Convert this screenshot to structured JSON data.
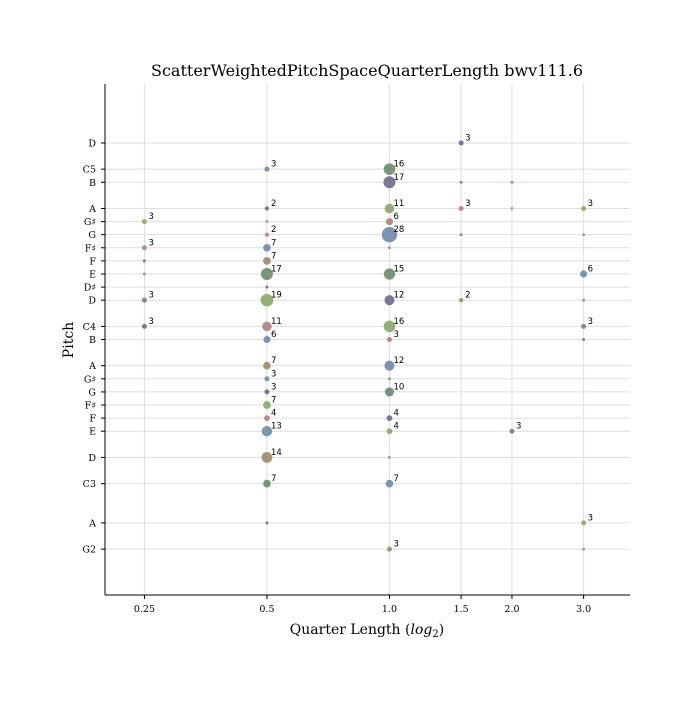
{
  "chart_data": {
    "type": "scatter",
    "title": "ScatterWeightedPitchSpaceQuarterLength bwv111.6",
    "xlabel": "Quarter Length (",
    "xlabel_math": "log",
    "xlabel_sub": "2",
    "xlabel_end": ")",
    "ylabel": "Pitch",
    "x_scale": "log2",
    "xlim": [
      0.2,
      3.9
    ],
    "ylim": [
      39.5,
      78.5
    ],
    "x_ticks": [
      {
        "value": 0.25,
        "label": "0.25"
      },
      {
        "value": 0.5,
        "label": "0.5"
      },
      {
        "value": 1.0,
        "label": "1.0"
      },
      {
        "value": 1.5,
        "label": "1.5"
      },
      {
        "value": 2.0,
        "label": "2.0"
      },
      {
        "value": 3.0,
        "label": "3.0"
      }
    ],
    "y_ticks": [
      {
        "value": 43,
        "label": "G2"
      },
      {
        "value": 45,
        "label": "A"
      },
      {
        "value": 48,
        "label": "C3"
      },
      {
        "value": 50,
        "label": "D"
      },
      {
        "value": 52,
        "label": "E"
      },
      {
        "value": 53,
        "label": "F"
      },
      {
        "value": 54,
        "label": "F♯"
      },
      {
        "value": 55,
        "label": "G"
      },
      {
        "value": 56,
        "label": "G♯"
      },
      {
        "value": 57,
        "label": "A"
      },
      {
        "value": 59,
        "label": "B"
      },
      {
        "value": 60,
        "label": "C4"
      },
      {
        "value": 62,
        "label": "D"
      },
      {
        "value": 63,
        "label": "D♯"
      },
      {
        "value": 64,
        "label": "E"
      },
      {
        "value": 65,
        "label": "F"
      },
      {
        "value": 66,
        "label": "F♯"
      },
      {
        "value": 67,
        "label": "G"
      },
      {
        "value": 68,
        "label": "G♯"
      },
      {
        "value": 69,
        "label": "A"
      },
      {
        "value": 71,
        "label": "B"
      },
      {
        "value": 72,
        "label": "C5"
      },
      {
        "value": 74,
        "label": "D"
      }
    ],
    "grid": true,
    "colors": [
      "#6c8a6e",
      "#6b6b8c",
      "#89a86c",
      "#9b8a6a",
      "#b3807c",
      "#6e8aa8"
    ],
    "points": [
      {
        "x": 1.5,
        "y": 74,
        "count": 3,
        "label": "3",
        "c": 1
      },
      {
        "x": 0.5,
        "y": 72,
        "count": 3,
        "label": "3",
        "c": 5
      },
      {
        "x": 1.0,
        "y": 72,
        "count": 16,
        "label": "16",
        "c": 0
      },
      {
        "x": 1.0,
        "y": 71,
        "count": 17,
        "label": "17",
        "c": 1
      },
      {
        "x": 1.5,
        "y": 71,
        "count": 1,
        "label": "",
        "c": 0
      },
      {
        "x": 2.0,
        "y": 71,
        "count": 1,
        "label": "",
        "c": 5
      },
      {
        "x": 0.5,
        "y": 69,
        "count": 2,
        "label": "2",
        "c": 1
      },
      {
        "x": 1.0,
        "y": 69,
        "count": 11,
        "label": "11",
        "c": 2
      },
      {
        "x": 1.5,
        "y": 69,
        "count": 3,
        "label": "3",
        "c": 4
      },
      {
        "x": 2.0,
        "y": 69,
        "count": 1,
        "label": "",
        "c": 2
      },
      {
        "x": 3.0,
        "y": 69,
        "count": 3,
        "label": "3",
        "c": 2
      },
      {
        "x": 0.25,
        "y": 68,
        "count": 3,
        "label": "3",
        "c": 2
      },
      {
        "x": 0.5,
        "y": 68,
        "count": 1,
        "label": "",
        "c": 2
      },
      {
        "x": 1.0,
        "y": 68,
        "count": 6,
        "label": "6",
        "c": 4
      },
      {
        "x": 0.5,
        "y": 67,
        "count": 2,
        "label": "2",
        "c": 4
      },
      {
        "x": 1.0,
        "y": 67,
        "count": 28,
        "label": "28",
        "c": 5
      },
      {
        "x": 1.5,
        "y": 67,
        "count": 1,
        "label": "",
        "c": 0
      },
      {
        "x": 3.0,
        "y": 67,
        "count": 1,
        "label": "",
        "c": 4
      },
      {
        "x": 0.25,
        "y": 66,
        "count": 3,
        "label": "3",
        "c": 4
      },
      {
        "x": 0.5,
        "y": 66,
        "count": 7,
        "label": "7",
        "c": 5
      },
      {
        "x": 1.0,
        "y": 66,
        "count": 1,
        "label": "",
        "c": 4
      },
      {
        "x": 0.25,
        "y": 65,
        "count": 1,
        "label": "",
        "c": 1
      },
      {
        "x": 0.5,
        "y": 65,
        "count": 7,
        "label": "7",
        "c": 3
      },
      {
        "x": 0.25,
        "y": 64,
        "count": 1,
        "label": "",
        "c": 4
      },
      {
        "x": 0.5,
        "y": 64,
        "count": 17,
        "label": "17",
        "c": 0
      },
      {
        "x": 1.0,
        "y": 64,
        "count": 15,
        "label": "15",
        "c": 0
      },
      {
        "x": 3.0,
        "y": 64,
        "count": 6,
        "label": "6",
        "c": 5
      },
      {
        "x": 0.5,
        "y": 63,
        "count": 1,
        "label": "",
        "c": 1
      },
      {
        "x": 0.25,
        "y": 62,
        "count": 3,
        "label": "3",
        "c": 0
      },
      {
        "x": 0.5,
        "y": 62,
        "count": 19,
        "label": "19",
        "c": 2
      },
      {
        "x": 1.0,
        "y": 62,
        "count": 12,
        "label": "12",
        "c": 1
      },
      {
        "x": 1.5,
        "y": 62,
        "count": 2,
        "label": "2",
        "c": 3
      },
      {
        "x": 3.0,
        "y": 62,
        "count": 1,
        "label": "",
        "c": 3
      },
      {
        "x": 0.25,
        "y": 60,
        "count": 3,
        "label": "3",
        "c": 1
      },
      {
        "x": 0.5,
        "y": 60,
        "count": 11,
        "label": "11",
        "c": 4
      },
      {
        "x": 1.0,
        "y": 60,
        "count": 16,
        "label": "16",
        "c": 2
      },
      {
        "x": 3.0,
        "y": 60,
        "count": 3,
        "label": "3",
        "c": 0
      },
      {
        "x": 0.5,
        "y": 59,
        "count": 6,
        "label": "6",
        "c": 5
      },
      {
        "x": 1.0,
        "y": 59,
        "count": 3,
        "label": "3",
        "c": 4
      },
      {
        "x": 3.0,
        "y": 59,
        "count": 1,
        "label": "",
        "c": 1
      },
      {
        "x": 0.5,
        "y": 57,
        "count": 7,
        "label": "7",
        "c": 3
      },
      {
        "x": 1.0,
        "y": 57,
        "count": 12,
        "label": "12",
        "c": 5
      },
      {
        "x": 0.5,
        "y": 56,
        "count": 3,
        "label": "3",
        "c": 5
      },
      {
        "x": 1.0,
        "y": 56,
        "count": 1,
        "label": "",
        "c": 3
      },
      {
        "x": 0.5,
        "y": 55,
        "count": 3,
        "label": "3",
        "c": 1
      },
      {
        "x": 1.0,
        "y": 55,
        "count": 10,
        "label": "10",
        "c": 0
      },
      {
        "x": 0.5,
        "y": 54,
        "count": 7,
        "label": "7",
        "c": 2
      },
      {
        "x": 0.5,
        "y": 53,
        "count": 4,
        "label": "4",
        "c": 4
      },
      {
        "x": 1.0,
        "y": 53,
        "count": 4,
        "label": "4",
        "c": 1
      },
      {
        "x": 0.5,
        "y": 52,
        "count": 13,
        "label": "13",
        "c": 5
      },
      {
        "x": 1.0,
        "y": 52,
        "count": 4,
        "label": "4",
        "c": 2
      },
      {
        "x": 2.0,
        "y": 52,
        "count": 3,
        "label": "3",
        "c": 0
      },
      {
        "x": 0.5,
        "y": 50,
        "count": 14,
        "label": "14",
        "c": 3
      },
      {
        "x": 1.0,
        "y": 50,
        "count": 1,
        "label": "",
        "c": 4
      },
      {
        "x": 0.5,
        "y": 48,
        "count": 7,
        "label": "7",
        "c": 0
      },
      {
        "x": 1.0,
        "y": 48,
        "count": 7,
        "label": "7",
        "c": 5
      },
      {
        "x": 0.5,
        "y": 45,
        "count": 1,
        "label": "",
        "c": 1
      },
      {
        "x": 3.0,
        "y": 45,
        "count": 3,
        "label": "3",
        "c": 2
      },
      {
        "x": 1.0,
        "y": 43,
        "count": 3,
        "label": "3",
        "c": 3
      },
      {
        "x": 3.0,
        "y": 43,
        "count": 1,
        "label": "",
        "c": 4
      }
    ]
  }
}
